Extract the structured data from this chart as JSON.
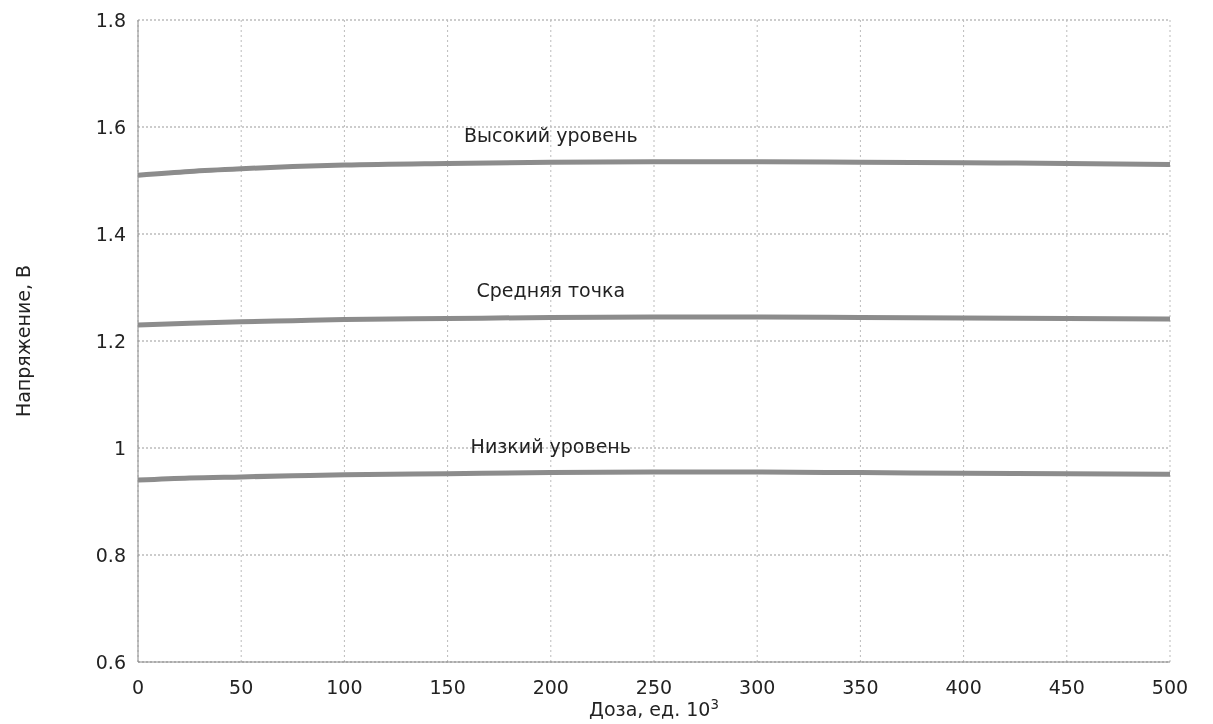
{
  "chart_data": {
    "type": "line",
    "xlabel": "Доза, ед. 10$^{3}$",
    "ylabel": "Напряжение, В",
    "xlim": [
      0,
      500
    ],
    "xticks": [
      0,
      50,
      100,
      150,
      200,
      250,
      300,
      350,
      400,
      450,
      500
    ],
    "ylim": [
      0.6,
      1.8
    ],
    "yticks": [
      0.6,
      0.8,
      1,
      1.2,
      1.4,
      1.6,
      1.8
    ],
    "grid": true,
    "marker": "none",
    "line_style": "solid",
    "x": [
      0,
      25,
      50,
      75,
      100,
      150,
      200,
      250,
      300,
      350,
      400,
      450,
      500
    ],
    "series": [
      {
        "name": "Высокий уровень",
        "color": "#8c8c8c",
        "values": [
          1.51,
          1.517,
          1.522,
          1.526,
          1.529,
          1.532,
          1.534,
          1.535,
          1.535,
          1.534,
          1.533,
          1.532,
          1.53
        ]
      },
      {
        "name": "Средняя точка",
        "color": "#8c8c8c",
        "values": [
          1.23,
          1.233,
          1.236,
          1.238,
          1.24,
          1.242,
          1.244,
          1.245,
          1.245,
          1.244,
          1.243,
          1.242,
          1.241
        ]
      },
      {
        "name": "Низкий уровень",
        "color": "#8c8c8c",
        "values": [
          0.94,
          0.944,
          0.946,
          0.948,
          0.95,
          0.952,
          0.954,
          0.955,
          0.955,
          0.954,
          0.953,
          0.952,
          0.951
        ]
      }
    ]
  }
}
